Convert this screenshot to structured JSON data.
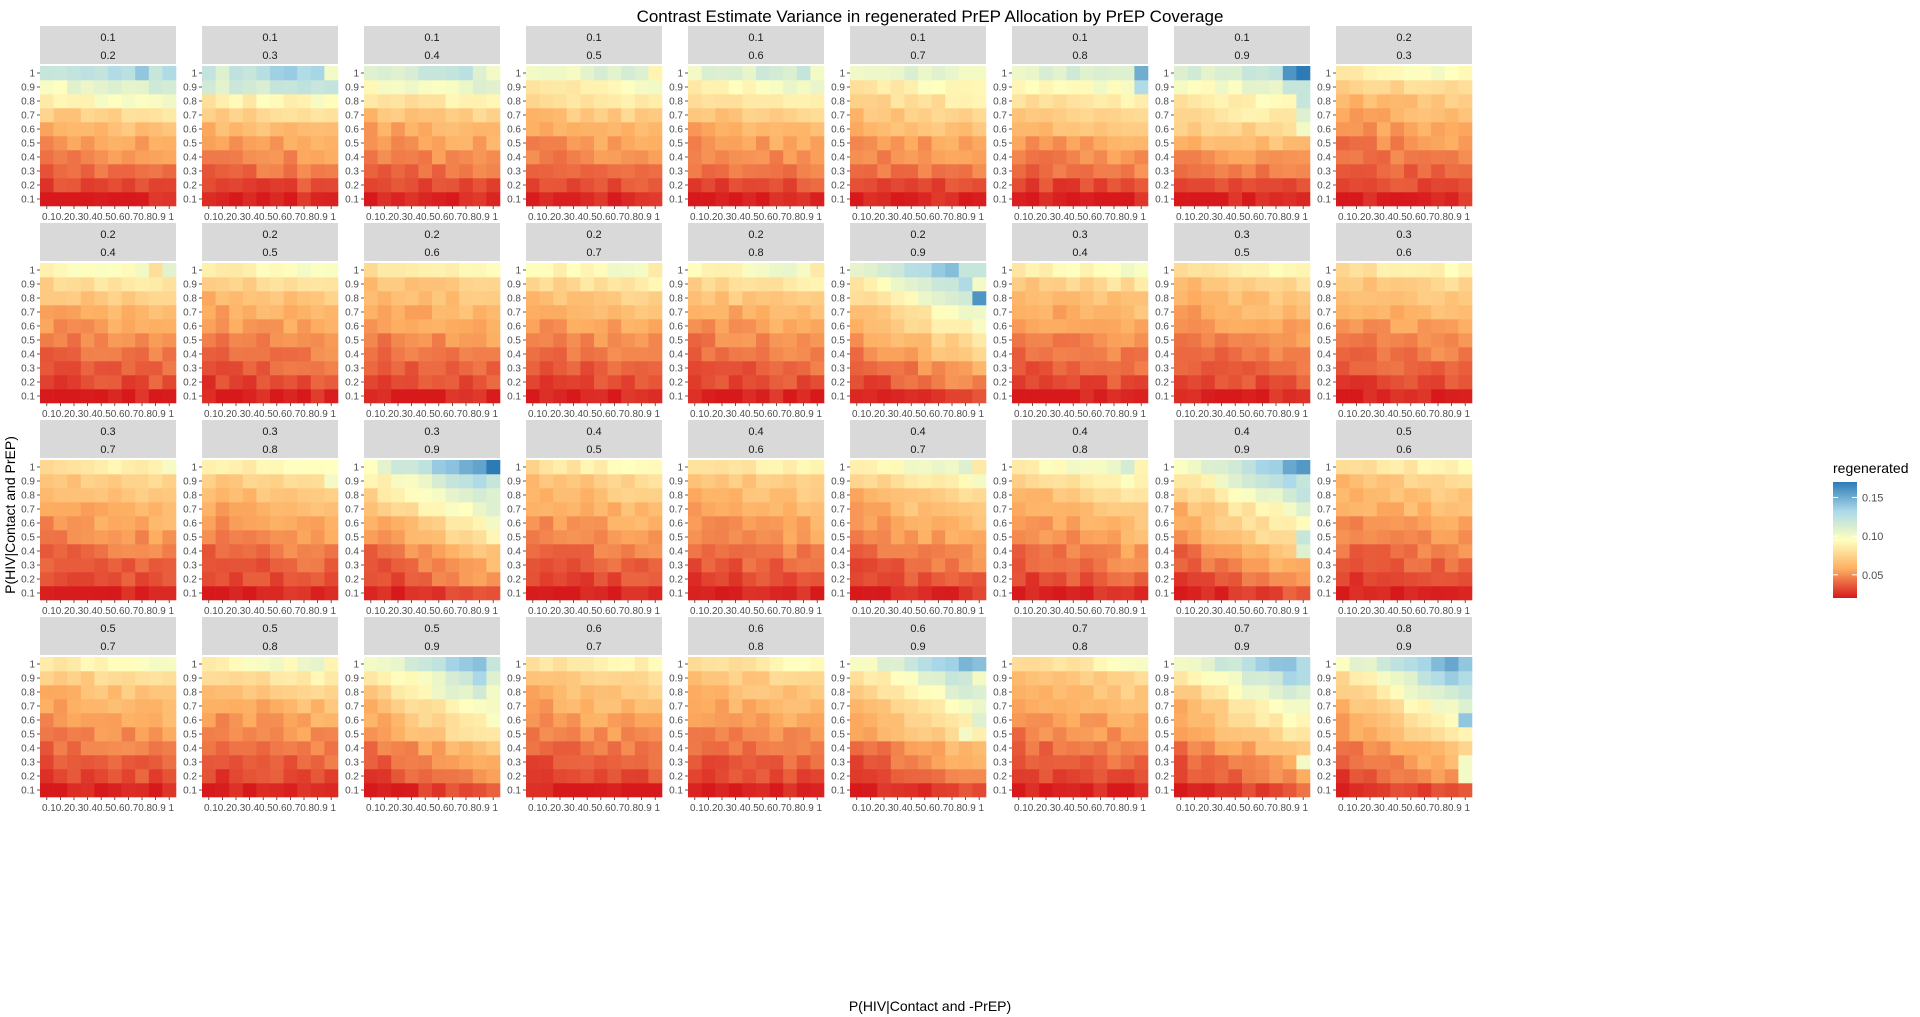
{
  "chart_data": {
    "type": "heatmap",
    "title": "Contrast Estimate Variance in regenerated PrEP Allocation by PrEP Coverage",
    "xlabel": "P(HIV|Contact and -PrEP)",
    "ylabel": "P(HIV|Contact and PrEP)",
    "x_ticks": [
      "0.1",
      "0.2",
      "0.3",
      "0.4",
      "0.5",
      "0.6",
      "0.7",
      "0.8",
      "0.9",
      "1"
    ],
    "y_ticks": [
      "0.1",
      "0.2",
      "0.3",
      "0.4",
      "0.5",
      "0.6",
      "0.7",
      "0.8",
      "0.9",
      "1"
    ],
    "x_tick_text": "0.10.20.30.40.50.60.70.80.9 1",
    "legend": {
      "title": "regenerated",
      "placement": "right",
      "breaks": [
        "0.15",
        "0.10",
        "0.05"
      ],
      "break_values": [
        0.15,
        0.1,
        0.05
      ],
      "limits": [
        0.02,
        0.17
      ],
      "colors": [
        "#d7191c",
        "#fdae61",
        "#ffffbf",
        "#abd9e9",
        "#2c7bb6"
      ]
    },
    "facets": [
      {
        "top": "0.1",
        "bottom": "0.2",
        "row_lo": [
          0.02,
          0.03,
          0.04,
          0.045,
          0.05,
          0.06
        ],
        "row_hi": [
          0.07,
          0.09,
          0.1
        ],
        "hi": [
          [
            9,
            7,
            0.14
          ],
          [
            9,
            5,
            0.13
          ],
          [
            9,
            8,
            0.12
          ]
        ]
      },
      {
        "top": "0.1",
        "bottom": "0.3",
        "row_lo": [
          0.02,
          0.03,
          0.04,
          0.045,
          0.05,
          0.06
        ],
        "row_hi": [
          0.07,
          0.085,
          0.11
        ],
        "hi": [
          [
            9,
            1,
            0.11
          ],
          [
            9,
            3,
            0.12
          ],
          [
            9,
            9,
            0.1
          ]
        ]
      },
      {
        "top": "0.1",
        "bottom": "0.4",
        "row_lo": [
          0.02,
          0.03,
          0.04,
          0.045,
          0.05,
          0.055
        ],
        "row_hi": [
          0.065,
          0.08,
          0.095
        ],
        "hi": [
          [
            9,
            8,
            0.11
          ],
          [
            9,
            9,
            0.1
          ]
        ]
      },
      {
        "top": "0.1",
        "bottom": "0.5",
        "row_lo": [
          0.02,
          0.03,
          0.04,
          0.045,
          0.05,
          0.055
        ],
        "row_hi": [
          0.065,
          0.075,
          0.085
        ],
        "hi": [
          [
            9,
            9,
            0.09
          ]
        ]
      },
      {
        "top": "0.1",
        "bottom": "0.6",
        "row_lo": [
          0.02,
          0.03,
          0.04,
          0.045,
          0.05,
          0.055
        ],
        "row_hi": [
          0.065,
          0.075,
          0.09
        ],
        "hi": [
          [
            9,
            9,
            0.1
          ]
        ]
      },
      {
        "top": "0.1",
        "bottom": "0.7",
        "row_lo": [
          0.02,
          0.03,
          0.04,
          0.045,
          0.05,
          0.06
        ],
        "row_hi": [
          0.065,
          0.075,
          0.085
        ],
        "hi": [
          [
            9,
            8,
            0.1
          ],
          [
            9,
            9,
            0.1
          ]
        ]
      },
      {
        "top": "0.1",
        "bottom": "0.8",
        "row_lo": [
          0.02,
          0.03,
          0.04,
          0.045,
          0.05,
          0.06
        ],
        "row_hi": [
          0.07,
          0.08,
          0.09
        ],
        "hi": [
          [
            9,
            9,
            0.15
          ],
          [
            8,
            9,
            0.13
          ],
          [
            9,
            7,
            0.11
          ],
          [
            9,
            8,
            0.11
          ]
        ]
      },
      {
        "top": "0.1",
        "bottom": "0.9",
        "row_lo": [
          0.02,
          0.03,
          0.04,
          0.05,
          0.06,
          0.07
        ],
        "row_hi": [
          0.08,
          0.085,
          0.095
        ],
        "hi": [
          [
            9,
            8,
            0.16
          ],
          [
            9,
            9,
            0.17
          ],
          [
            9,
            5,
            0.12
          ],
          [
            8,
            8,
            0.12
          ],
          [
            8,
            9,
            0.12
          ],
          [
            7,
            9,
            0.12
          ],
          [
            6,
            9,
            0.11
          ],
          [
            5,
            9,
            0.1
          ]
        ]
      },
      {
        "top": "0.2",
        "bottom": "0.3",
        "row_lo": [
          0.02,
          0.03,
          0.035,
          0.04,
          0.045,
          0.05
        ],
        "row_hi": [
          0.055,
          0.06,
          0.07
        ],
        "hi": []
      },
      {
        "top": "0.2",
        "bottom": "0.4",
        "row_lo": [
          0.02,
          0.03,
          0.035,
          0.04,
          0.045,
          0.05
        ],
        "row_hi": [
          0.055,
          0.065,
          0.075
        ],
        "hi": [
          [
            9,
            8,
            0.08
          ]
        ]
      },
      {
        "top": "0.2",
        "bottom": "0.5",
        "row_lo": [
          0.02,
          0.03,
          0.035,
          0.04,
          0.045,
          0.05
        ],
        "row_hi": [
          0.055,
          0.06,
          0.07
        ],
        "hi": []
      },
      {
        "top": "0.2",
        "bottom": "0.6",
        "row_lo": [
          0.02,
          0.03,
          0.035,
          0.04,
          0.045,
          0.05
        ],
        "row_hi": [
          0.055,
          0.06,
          0.065
        ],
        "hi": []
      },
      {
        "top": "0.2",
        "bottom": "0.7",
        "row_lo": [
          0.02,
          0.03,
          0.035,
          0.04,
          0.045,
          0.05
        ],
        "row_hi": [
          0.055,
          0.065,
          0.075
        ],
        "hi": [
          [
            9,
            9,
            0.085
          ]
        ]
      },
      {
        "top": "0.2",
        "bottom": "0.8",
        "row_lo": [
          0.02,
          0.03,
          0.035,
          0.04,
          0.045,
          0.05
        ],
        "row_hi": [
          0.055,
          0.065,
          0.075
        ],
        "hi": [
          [
            8,
            9,
            0.09
          ],
          [
            9,
            9,
            0.085
          ]
        ]
      },
      {
        "top": "0.2",
        "bottom": "0.9",
        "row_lo": [
          0.02,
          0.03,
          0.035,
          0.045,
          0.05,
          0.06
        ],
        "row_hi": [
          0.065,
          0.075,
          0.085
        ],
        "hi": [
          [
            7,
            9,
            0.16
          ],
          [
            9,
            8,
            0.12
          ],
          [
            9,
            9,
            0.12
          ],
          [
            8,
            9,
            0.1
          ]
        ],
        "colgrad": 0.04
      },
      {
        "top": "0.3",
        "bottom": "0.4",
        "row_lo": [
          0.02,
          0.03,
          0.035,
          0.04,
          0.045,
          0.05
        ],
        "row_hi": [
          0.055,
          0.06,
          0.07
        ],
        "hi": []
      },
      {
        "top": "0.3",
        "bottom": "0.5",
        "row_lo": [
          0.02,
          0.03,
          0.035,
          0.04,
          0.045,
          0.05
        ],
        "row_hi": [
          0.055,
          0.06,
          0.065
        ],
        "hi": []
      },
      {
        "top": "0.3",
        "bottom": "0.6",
        "row_lo": [
          0.02,
          0.03,
          0.035,
          0.04,
          0.045,
          0.05
        ],
        "row_hi": [
          0.055,
          0.06,
          0.065
        ],
        "hi": []
      },
      {
        "top": "0.3",
        "bottom": "0.7",
        "row_lo": [
          0.02,
          0.03,
          0.035,
          0.04,
          0.045,
          0.05
        ],
        "row_hi": [
          0.055,
          0.06,
          0.065
        ],
        "hi": []
      },
      {
        "top": "0.3",
        "bottom": "0.8",
        "row_lo": [
          0.02,
          0.03,
          0.035,
          0.04,
          0.045,
          0.05
        ],
        "row_hi": [
          0.055,
          0.06,
          0.07
        ],
        "hi": [
          [
            8,
            9,
            0.1
          ]
        ]
      },
      {
        "top": "0.3",
        "bottom": "0.9",
        "row_lo": [
          0.02,
          0.03,
          0.035,
          0.04,
          0.05,
          0.055
        ],
        "row_hi": [
          0.065,
          0.075,
          0.085
        ],
        "hi": [
          [
            9,
            9,
            0.17
          ],
          [
            8,
            9,
            0.12
          ],
          [
            7,
            9,
            0.11
          ],
          [
            6,
            9,
            0.11
          ]
        ],
        "colgrad": 0.045
      },
      {
        "top": "0.4",
        "bottom": "0.5",
        "row_lo": [
          0.02,
          0.03,
          0.035,
          0.04,
          0.045,
          0.05
        ],
        "row_hi": [
          0.055,
          0.06,
          0.065
        ],
        "hi": []
      },
      {
        "top": "0.4",
        "bottom": "0.6",
        "row_lo": [
          0.02,
          0.03,
          0.035,
          0.04,
          0.045,
          0.05
        ],
        "row_hi": [
          0.055,
          0.06,
          0.065
        ],
        "hi": []
      },
      {
        "top": "0.4",
        "bottom": "0.7",
        "row_lo": [
          0.02,
          0.03,
          0.035,
          0.04,
          0.045,
          0.05
        ],
        "row_hi": [
          0.055,
          0.06,
          0.07
        ],
        "hi": [
          [
            9,
            9,
            0.085
          ]
        ],
        "colgrad": 0.02
      },
      {
        "top": "0.4",
        "bottom": "0.8",
        "row_lo": [
          0.02,
          0.03,
          0.035,
          0.04,
          0.045,
          0.05
        ],
        "row_hi": [
          0.055,
          0.06,
          0.07
        ],
        "hi": [
          [
            9,
            9,
            0.09
          ]
        ],
        "colgrad": 0.02
      },
      {
        "top": "0.4",
        "bottom": "0.9",
        "row_lo": [
          0.02,
          0.03,
          0.035,
          0.04,
          0.05,
          0.055
        ],
        "row_hi": [
          0.06,
          0.07,
          0.08
        ],
        "hi": [
          [
            8,
            9,
            0.12
          ],
          [
            6,
            9,
            0.11
          ],
          [
            4,
            9,
            0.12
          ],
          [
            3,
            9,
            0.11
          ]
        ],
        "colgrad": 0.045
      },
      {
        "top": "0.5",
        "bottom": "0.6",
        "row_lo": [
          0.02,
          0.03,
          0.035,
          0.04,
          0.045,
          0.05
        ],
        "row_hi": [
          0.055,
          0.06,
          0.065
        ],
        "hi": []
      },
      {
        "top": "0.5",
        "bottom": "0.7",
        "row_lo": [
          0.02,
          0.03,
          0.035,
          0.04,
          0.045,
          0.05
        ],
        "row_hi": [
          0.055,
          0.06,
          0.07
        ],
        "hi": [
          [
            8,
            9,
            0.08
          ]
        ]
      },
      {
        "top": "0.5",
        "bottom": "0.8",
        "row_lo": [
          0.02,
          0.03,
          0.035,
          0.04,
          0.045,
          0.05
        ],
        "row_hi": [
          0.055,
          0.065,
          0.075
        ],
        "hi": [
          [
            9,
            9,
            0.09
          ],
          [
            8,
            9,
            0.085
          ]
        ]
      },
      {
        "top": "0.5",
        "bottom": "0.9",
        "row_lo": [
          0.02,
          0.03,
          0.035,
          0.04,
          0.05,
          0.055
        ],
        "row_hi": [
          0.06,
          0.07,
          0.08
        ],
        "hi": [
          [
            9,
            9,
            0.12
          ],
          [
            8,
            9,
            0.11
          ],
          [
            7,
            9,
            0.1
          ]
        ],
        "colgrad": 0.045
      },
      {
        "top": "0.6",
        "bottom": "0.7",
        "row_lo": [
          0.02,
          0.03,
          0.035,
          0.04,
          0.045,
          0.05
        ],
        "row_hi": [
          0.055,
          0.06,
          0.065
        ],
        "hi": []
      },
      {
        "top": "0.6",
        "bottom": "0.8",
        "row_lo": [
          0.02,
          0.03,
          0.035,
          0.04,
          0.045,
          0.05
        ],
        "row_hi": [
          0.055,
          0.06,
          0.065
        ],
        "hi": []
      },
      {
        "top": "0.6",
        "bottom": "0.9",
        "row_lo": [
          0.02,
          0.03,
          0.035,
          0.04,
          0.05,
          0.055
        ],
        "row_hi": [
          0.06,
          0.07,
          0.08
        ],
        "hi": [
          [
            8,
            9,
            0.1
          ],
          [
            5,
            9,
            0.11
          ],
          [
            4,
            8,
            0.1
          ]
        ],
        "colgrad": 0.04
      },
      {
        "top": "0.7",
        "bottom": "0.8",
        "row_lo": [
          0.02,
          0.03,
          0.035,
          0.04,
          0.045,
          0.05
        ],
        "row_hi": [
          0.055,
          0.06,
          0.065
        ],
        "hi": []
      },
      {
        "top": "0.7",
        "bottom": "0.9",
        "row_lo": [
          0.02,
          0.03,
          0.035,
          0.04,
          0.05,
          0.055
        ],
        "row_hi": [
          0.06,
          0.07,
          0.08
        ],
        "hi": [
          [
            9,
            9,
            0.13
          ],
          [
            8,
            9,
            0.13
          ],
          [
            7,
            9,
            0.11
          ],
          [
            6,
            9,
            0.1
          ],
          [
            2,
            9,
            0.1
          ]
        ],
        "colgrad": 0.045
      },
      {
        "top": "0.8",
        "bottom": "0.9",
        "row_lo": [
          0.02,
          0.03,
          0.035,
          0.04,
          0.05,
          0.055
        ],
        "row_hi": [
          0.06,
          0.07,
          0.08
        ],
        "hi": [
          [
            9,
            9,
            0.14
          ],
          [
            8,
            9,
            0.13
          ],
          [
            7,
            9,
            0.12
          ],
          [
            5,
            9,
            0.14
          ],
          [
            6,
            9,
            0.11
          ],
          [
            2,
            9,
            0.1
          ],
          [
            1,
            9,
            0.1
          ]
        ],
        "colgrad": 0.05
      }
    ]
  }
}
